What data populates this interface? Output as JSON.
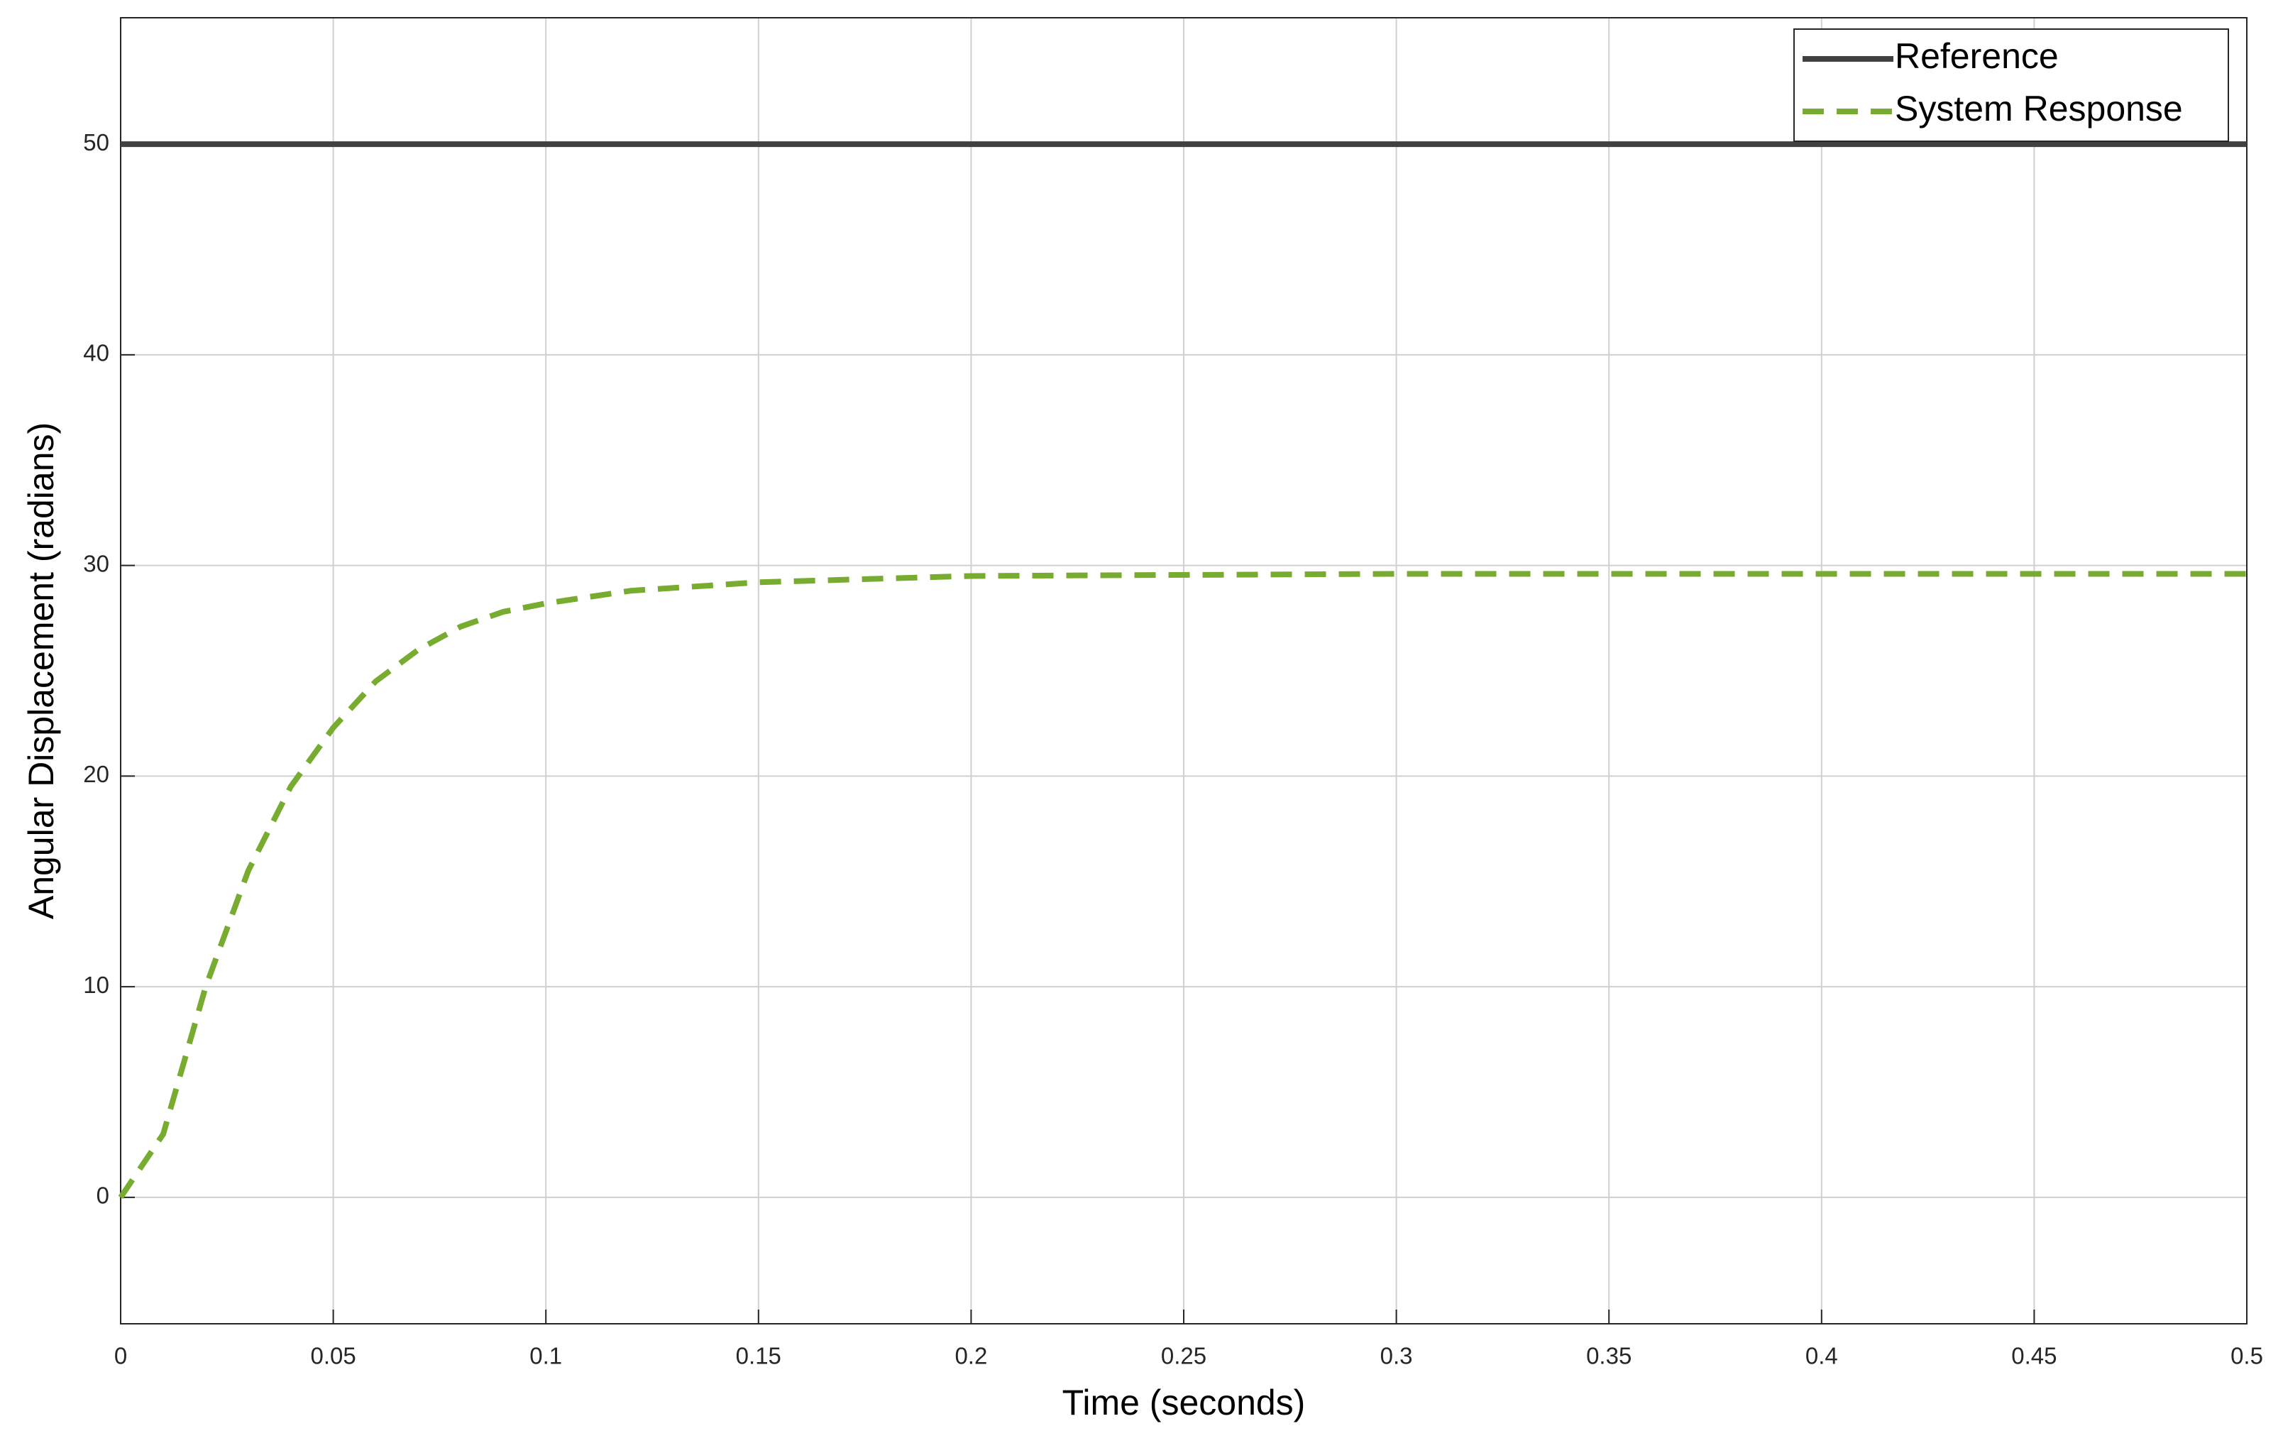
{
  "chart_data": {
    "type": "line",
    "xlabel": "Time (seconds)",
    "ylabel": "Angular Displacement (radians)",
    "x": [
      0,
      0.01,
      0.02,
      0.03,
      0.04,
      0.05,
      0.06,
      0.07,
      0.08,
      0.09,
      0.1,
      0.12,
      0.15,
      0.2,
      0.3,
      0.4,
      0.5
    ],
    "series": [
      {
        "name": "Reference",
        "color": "#404040",
        "linestyle": "solid",
        "values": [
          50,
          50,
          50,
          50,
          50,
          50,
          50,
          50,
          50,
          50,
          50,
          50,
          50,
          50,
          50,
          50,
          50
        ]
      },
      {
        "name": "System Response",
        "color": "#77ac30",
        "linestyle": "dashed",
        "values": [
          0,
          3,
          10,
          15.5,
          19.5,
          22.3,
          24.5,
          26,
          27.1,
          27.8,
          28.2,
          28.8,
          29.2,
          29.5,
          29.6,
          29.6,
          29.6
        ]
      }
    ],
    "xlim": [
      0,
      0.5
    ],
    "xticks": [
      0,
      0.05,
      0.1,
      0.15,
      0.2,
      0.25,
      0.3,
      0.35,
      0.4,
      0.45,
      0.5
    ],
    "ylim": [
      -6,
      56
    ],
    "yticks": [
      0,
      10,
      20,
      30,
      40,
      50
    ],
    "grid": true,
    "legend": "upper right"
  }
}
